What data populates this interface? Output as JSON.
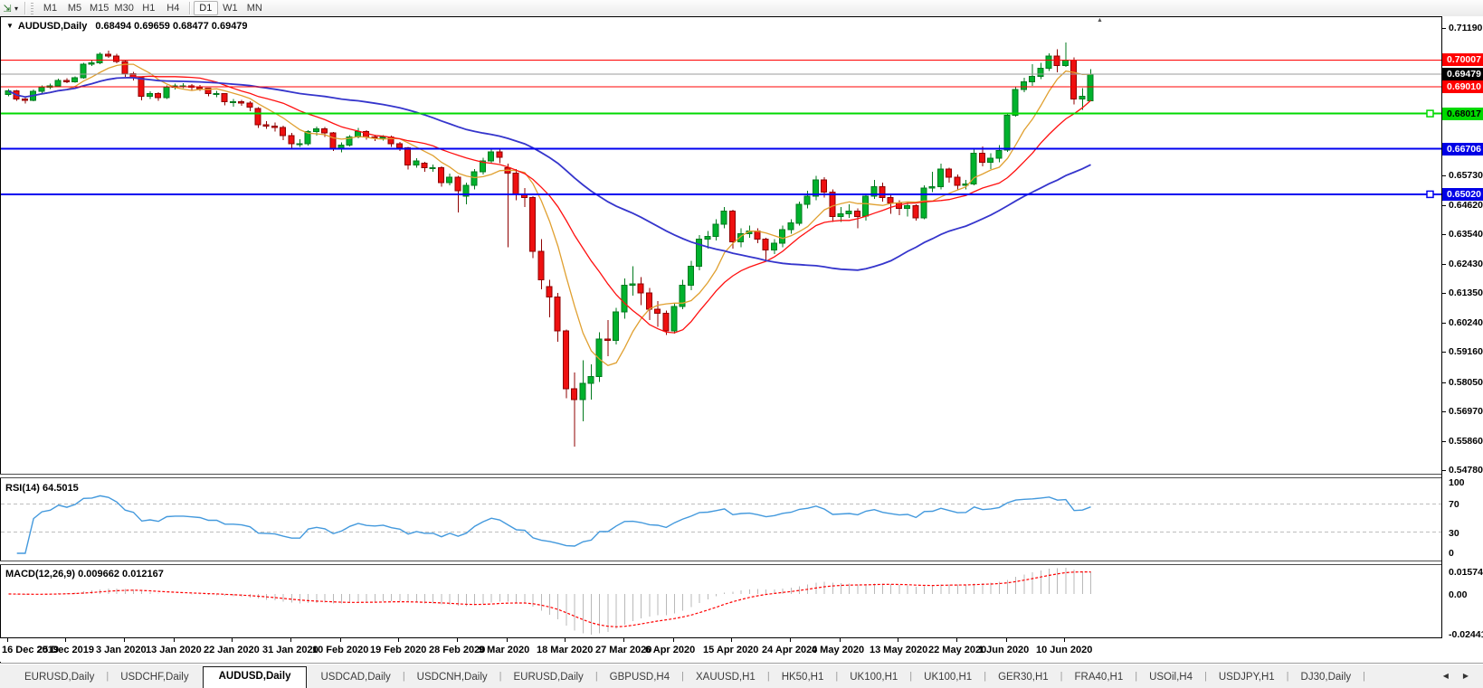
{
  "colors": {
    "candle_up_fill": "#00B22D",
    "candle_up_stroke": "#007A1E",
    "candle_down_fill": "#EE1010",
    "candle_down_stroke": "#8F0000",
    "rsi_line": "#4399DD",
    "rsi_level_dash": "#BDBDBD",
    "macd_hist": "#B9B9B9",
    "macd_signal": "#FF0000",
    "axis_text": "#000000",
    "panel_bg": "#FFFFFF"
  },
  "toolbar": {
    "chart_tool_glyph": "⇲",
    "dropdown_glyph": "▾",
    "timeframes": [
      "M1",
      "M5",
      "M15",
      "M30",
      "H1",
      "H4",
      "D1",
      "W1",
      "MN"
    ],
    "active_timeframe": "D1"
  },
  "chart": {
    "title_marker": "▼",
    "title": "AUDUSD,Daily",
    "ohlc_display": "0.68494 0.69659 0.68477 0.69479",
    "open": "0.68494",
    "high": "0.69659",
    "low": "0.68477",
    "close": "0.69479",
    "shift_marker_glyph": "▲",
    "price_axis": {
      "max_price": 0.7119,
      "min_price": 0.5478,
      "ticks": [
        "0.71190",
        "0.67920",
        "0.65730",
        "0.64620",
        "0.63540",
        "0.62430",
        "0.61350",
        "0.60240",
        "0.59160",
        "0.58050",
        "0.56970",
        "0.55860",
        "0.54780"
      ]
    },
    "current_price": {
      "price": 0.69479,
      "label": "0.69479",
      "line_color": "#9B9B9B",
      "badge_bg": "#000000",
      "badge_fg": "#FFFFFF"
    },
    "levels": [
      {
        "price": 0.70007,
        "label": "0.70007",
        "color": "#FF0000",
        "width": 1,
        "badge_bg": "#FF0000",
        "badge_fg": "#FFFFFF",
        "handle": false
      },
      {
        "price": 0.6901,
        "label": "0.69010",
        "color": "#FF0000",
        "width": 1,
        "badge_bg": "#FF0000",
        "badge_fg": "#FFFFFF",
        "handle": false
      },
      {
        "price": 0.68017,
        "label": "0.68017",
        "color": "#00D900",
        "width": 2,
        "badge_bg": "#00D900",
        "badge_fg": "#000000",
        "handle": true
      },
      {
        "price": 0.66706,
        "label": "0.66706",
        "color": "#0000F0",
        "width": 2,
        "badge_bg": "#0000E6",
        "badge_fg": "#FFFFFF",
        "handle": false
      },
      {
        "price": 0.6502,
        "label": "0.65020",
        "color": "#0000F0",
        "width": 2,
        "badge_bg": "#0000E6",
        "badge_fg": "#FFFFFF",
        "handle": true
      }
    ],
    "moving_averages": [
      {
        "name": "ma-gold",
        "period": 7,
        "color": "#E0A030"
      },
      {
        "name": "ma-red",
        "period": 15,
        "color": "#FF1010"
      },
      {
        "name": "ma-blue",
        "period": 40,
        "color": "#3535CC"
      }
    ],
    "candles": [
      [
        0.6872,
        0.6893,
        0.6866,
        0.6885
      ],
      [
        0.6885,
        0.6889,
        0.6849,
        0.6855
      ],
      [
        0.6855,
        0.6862,
        0.6838,
        0.685
      ],
      [
        0.685,
        0.689,
        0.6847,
        0.6884
      ],
      [
        0.6884,
        0.6906,
        0.6878,
        0.69
      ],
      [
        0.69,
        0.6912,
        0.6892,
        0.6905
      ],
      [
        0.6905,
        0.6931,
        0.6901,
        0.6925
      ],
      [
        0.6925,
        0.6933,
        0.6915,
        0.692
      ],
      [
        0.692,
        0.694,
        0.6916,
        0.6935
      ],
      [
        0.6935,
        0.699,
        0.6931,
        0.6985
      ],
      [
        0.6985,
        0.7,
        0.6978,
        0.699
      ],
      [
        0.699,
        0.7029,
        0.6985,
        0.7021
      ],
      [
        0.7021,
        0.7035,
        0.7008,
        0.7015
      ],
      [
        0.7015,
        0.7023,
        0.6988,
        0.6995
      ],
      [
        0.6995,
        0.7,
        0.6938,
        0.695
      ],
      [
        0.695,
        0.6956,
        0.6925,
        0.6935
      ],
      [
        0.6935,
        0.6938,
        0.685,
        0.6865
      ],
      [
        0.6865,
        0.6884,
        0.6855,
        0.6875
      ],
      [
        0.6875,
        0.688,
        0.6849,
        0.686
      ],
      [
        0.686,
        0.6906,
        0.6855,
        0.69
      ],
      [
        0.69,
        0.6912,
        0.689,
        0.6905
      ],
      [
        0.6905,
        0.6915,
        0.6895,
        0.6905
      ],
      [
        0.6905,
        0.6911,
        0.6888,
        0.69
      ],
      [
        0.69,
        0.6908,
        0.6885,
        0.6895
      ],
      [
        0.6895,
        0.6898,
        0.6866,
        0.6875
      ],
      [
        0.6875,
        0.6885,
        0.6863,
        0.6875
      ],
      [
        0.6875,
        0.6878,
        0.6832,
        0.6845
      ],
      [
        0.6845,
        0.6855,
        0.6827,
        0.6845
      ],
      [
        0.6845,
        0.6852,
        0.683,
        0.684
      ],
      [
        0.684,
        0.6848,
        0.681,
        0.6825
      ],
      [
        0.682,
        0.6826,
        0.6748,
        0.676
      ],
      [
        0.676,
        0.6774,
        0.6744,
        0.6755
      ],
      [
        0.6755,
        0.6768,
        0.6735,
        0.675
      ],
      [
        0.675,
        0.6756,
        0.6703,
        0.672
      ],
      [
        0.672,
        0.6729,
        0.667,
        0.669
      ],
      [
        0.669,
        0.6706,
        0.6678,
        0.669
      ],
      [
        0.669,
        0.674,
        0.6682,
        0.6735
      ],
      [
        0.6735,
        0.6754,
        0.672,
        0.6745
      ],
      [
        0.6745,
        0.6752,
        0.6715,
        0.673
      ],
      [
        0.673,
        0.6733,
        0.6662,
        0.667
      ],
      [
        0.667,
        0.6694,
        0.6657,
        0.6685
      ],
      [
        0.6685,
        0.6722,
        0.668,
        0.6715
      ],
      [
        0.6715,
        0.6748,
        0.671,
        0.6735
      ],
      [
        0.6735,
        0.674,
        0.6705,
        0.6715
      ],
      [
        0.6715,
        0.6723,
        0.67,
        0.671
      ],
      [
        0.671,
        0.6722,
        0.6702,
        0.6715
      ],
      [
        0.6715,
        0.672,
        0.6678,
        0.669
      ],
      [
        0.669,
        0.6696,
        0.6662,
        0.6675
      ],
      [
        0.6675,
        0.6678,
        0.6593,
        0.661
      ],
      [
        0.661,
        0.6636,
        0.66,
        0.6625
      ],
      [
        0.6618,
        0.6622,
        0.6585,
        0.66
      ],
      [
        0.66,
        0.6613,
        0.6586,
        0.66
      ],
      [
        0.66,
        0.6605,
        0.653,
        0.6545
      ],
      [
        0.6545,
        0.6578,
        0.6535,
        0.6565
      ],
      [
        0.6565,
        0.657,
        0.6434,
        0.6515
      ],
      [
        0.6495,
        0.6545,
        0.6465,
        0.6535
      ],
      [
        0.6535,
        0.6595,
        0.652,
        0.6585
      ],
      [
        0.6585,
        0.6637,
        0.6575,
        0.6625
      ],
      [
        0.6625,
        0.667,
        0.6615,
        0.666
      ],
      [
        0.666,
        0.6667,
        0.6618,
        0.664
      ],
      [
        0.66,
        0.6615,
        0.6305,
        0.658
      ],
      [
        0.658,
        0.6595,
        0.648,
        0.65
      ],
      [
        0.65,
        0.6525,
        0.6455,
        0.649
      ],
      [
        0.649,
        0.6495,
        0.6265,
        0.629
      ],
      [
        0.629,
        0.6335,
        0.615,
        0.6185
      ],
      [
        0.616,
        0.6185,
        0.6045,
        0.612
      ],
      [
        0.612,
        0.6135,
        0.5955,
        0.5995
      ],
      [
        0.5995,
        0.6,
        0.5745,
        0.578
      ],
      [
        0.578,
        0.584,
        0.5565,
        0.574
      ],
      [
        0.574,
        0.5885,
        0.566,
        0.58
      ],
      [
        0.58,
        0.587,
        0.574,
        0.5825
      ],
      [
        0.5825,
        0.599,
        0.5805,
        0.5965
      ],
      [
        0.5965,
        0.6035,
        0.59,
        0.596
      ],
      [
        0.596,
        0.608,
        0.5945,
        0.6065
      ],
      [
        0.6065,
        0.619,
        0.604,
        0.6165
      ],
      [
        0.6165,
        0.6235,
        0.6125,
        0.617
      ],
      [
        0.617,
        0.6195,
        0.609,
        0.6135
      ],
      [
        0.6135,
        0.6155,
        0.6035,
        0.6075
      ],
      [
        0.6075,
        0.6105,
        0.601,
        0.606
      ],
      [
        0.606,
        0.607,
        0.598,
        0.5995
      ],
      [
        0.5995,
        0.6095,
        0.5985,
        0.6085
      ],
      [
        0.6085,
        0.6185,
        0.6075,
        0.6165
      ],
      [
        0.6165,
        0.6255,
        0.6145,
        0.6235
      ],
      [
        0.6235,
        0.635,
        0.622,
        0.6335
      ],
      [
        0.6335,
        0.6365,
        0.63,
        0.6345
      ],
      [
        0.6345,
        0.641,
        0.633,
        0.639
      ],
      [
        0.639,
        0.6455,
        0.6375,
        0.644
      ],
      [
        0.644,
        0.6445,
        0.63,
        0.6325
      ],
      [
        0.6325,
        0.6375,
        0.6305,
        0.6355
      ],
      [
        0.6355,
        0.6385,
        0.634,
        0.6365
      ],
      [
        0.6365,
        0.6375,
        0.632,
        0.6335
      ],
      [
        0.6335,
        0.634,
        0.6255,
        0.6295
      ],
      [
        0.6295,
        0.6335,
        0.628,
        0.632
      ],
      [
        0.632,
        0.6385,
        0.6305,
        0.637
      ],
      [
        0.637,
        0.641,
        0.6355,
        0.6395
      ],
      [
        0.6395,
        0.6475,
        0.6385,
        0.6465
      ],
      [
        0.6465,
        0.6515,
        0.645,
        0.6495
      ],
      [
        0.6495,
        0.657,
        0.648,
        0.6555
      ],
      [
        0.6555,
        0.6565,
        0.649,
        0.651
      ],
      [
        0.651,
        0.652,
        0.64,
        0.642
      ],
      [
        0.642,
        0.6455,
        0.64,
        0.643
      ],
      [
        0.643,
        0.6465,
        0.6415,
        0.644
      ],
      [
        0.644,
        0.645,
        0.6375,
        0.642
      ],
      [
        0.642,
        0.6505,
        0.6405,
        0.6495
      ],
      [
        0.6495,
        0.6555,
        0.6485,
        0.653
      ],
      [
        0.653,
        0.6545,
        0.6475,
        0.649
      ],
      [
        0.649,
        0.6505,
        0.643,
        0.647
      ],
      [
        0.647,
        0.648,
        0.6425,
        0.645
      ],
      [
        0.645,
        0.6475,
        0.642,
        0.646
      ],
      [
        0.646,
        0.6465,
        0.6405,
        0.6415
      ],
      [
        0.6415,
        0.6535,
        0.641,
        0.6525
      ],
      [
        0.6525,
        0.6585,
        0.651,
        0.653
      ],
      [
        0.653,
        0.6615,
        0.652,
        0.6595
      ],
      [
        0.6595,
        0.66,
        0.6545,
        0.6565
      ],
      [
        0.6565,
        0.6575,
        0.652,
        0.6535
      ],
      [
        0.6535,
        0.6555,
        0.652,
        0.654
      ],
      [
        0.654,
        0.6675,
        0.6535,
        0.6655
      ],
      [
        0.6655,
        0.668,
        0.6605,
        0.662
      ],
      [
        0.662,
        0.6655,
        0.6595,
        0.6635
      ],
      [
        0.6635,
        0.6685,
        0.662,
        0.6665
      ],
      [
        0.6665,
        0.6805,
        0.666,
        0.6795
      ],
      [
        0.6795,
        0.69,
        0.679,
        0.689
      ],
      [
        0.689,
        0.6935,
        0.688,
        0.692
      ],
      [
        0.692,
        0.6985,
        0.6905,
        0.694
      ],
      [
        0.694,
        0.699,
        0.693,
        0.697
      ],
      [
        0.697,
        0.7025,
        0.696,
        0.7015
      ],
      [
        0.7015,
        0.704,
        0.6955,
        0.698
      ],
      [
        0.698,
        0.7065,
        0.6975,
        0.7
      ],
      [
        0.7,
        0.701,
        0.6835,
        0.6855
      ],
      [
        0.6855,
        0.6895,
        0.6815,
        0.6865
      ],
      [
        0.68494,
        0.69659,
        0.68477,
        0.69479
      ]
    ]
  },
  "rsi": {
    "label": "RSI(14) 64.5015",
    "period": 14,
    "value": "64.5015",
    "axis_labels": [
      "100",
      "70",
      "30",
      "0"
    ],
    "axis_values": [
      100,
      70,
      30,
      0
    ],
    "levels": [
      70,
      30
    ]
  },
  "macd": {
    "label": "MACD(12,26,9) 0.009662 0.012167",
    "fast": 12,
    "slow": 26,
    "signal_period": 9,
    "main_value": "0.009662",
    "signal_value": "0.012167",
    "axis_max": "0.015741",
    "axis_zero": "0.00",
    "axis_min": "-0.024417",
    "axis_max_value": 0.015741,
    "axis_min_value": -0.024417
  },
  "time_axis": {
    "labels": [
      "16 Dec 2019",
      "25 Dec 2019",
      "3 Jan 2020",
      "13 Jan 2020",
      "22 Jan 2020",
      "31 Jan 2020",
      "10 Feb 2020",
      "19 Feb 2020",
      "28 Feb 2020",
      "9 Mar 2020",
      "18 Mar 2020",
      "27 Mar 2020",
      "6 Apr 2020",
      "15 Apr 2020",
      "24 Apr 2020",
      "4 May 2020",
      "13 May 2020",
      "22 May 2020",
      "1 Jun 2020",
      "10 Jun 2020"
    ],
    "tick_indices": [
      0,
      7,
      14,
      20,
      27,
      34,
      40,
      47,
      54,
      60,
      67,
      74,
      80,
      87,
      94,
      100,
      107,
      114,
      120,
      127
    ]
  },
  "tabbar": {
    "tabs": [
      "EURUSD,Daily",
      "USDCHF,Daily",
      "AUDUSD,Daily",
      "USDCAD,Daily",
      "USDCNH,Daily",
      "EURUSD,Daily",
      "GBPUSD,H4",
      "XAUUSD,H1",
      "HK50,H1",
      "UK100,H1",
      "UK100,H1",
      "GER30,H1",
      "FRA40,H1",
      "USOil,H4",
      "USDJPY,H1",
      "DJ30,Daily"
    ],
    "active_index": 2,
    "scroll_left_glyph": "◀",
    "scroll_right_glyph": "▶"
  }
}
